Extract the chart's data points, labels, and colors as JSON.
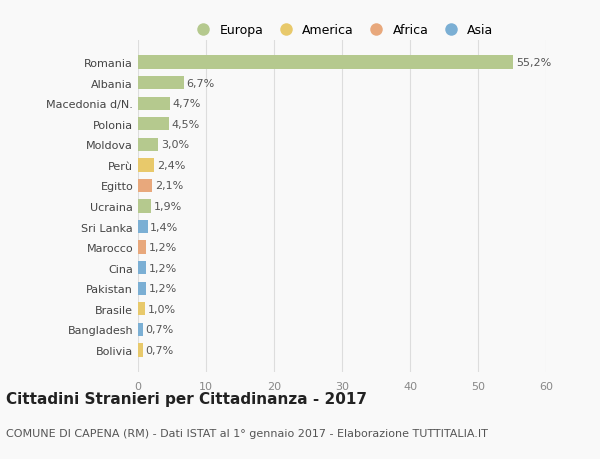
{
  "countries": [
    "Romania",
    "Albania",
    "Macedonia d/N.",
    "Polonia",
    "Moldova",
    "Perù",
    "Egitto",
    "Ucraina",
    "Sri Lanka",
    "Marocco",
    "Cina",
    "Pakistan",
    "Brasile",
    "Bangladesh",
    "Bolivia"
  ],
  "values": [
    55.2,
    6.7,
    4.7,
    4.5,
    3.0,
    2.4,
    2.1,
    1.9,
    1.4,
    1.2,
    1.2,
    1.2,
    1.0,
    0.7,
    0.7
  ],
  "labels": [
    "55,2%",
    "6,7%",
    "4,7%",
    "4,5%",
    "3,0%",
    "2,4%",
    "2,1%",
    "1,9%",
    "1,4%",
    "1,2%",
    "1,2%",
    "1,2%",
    "1,0%",
    "0,7%",
    "0,7%"
  ],
  "continents": [
    "Europa",
    "Europa",
    "Europa",
    "Europa",
    "Europa",
    "America",
    "Africa",
    "Europa",
    "Asia",
    "Africa",
    "Asia",
    "Asia",
    "America",
    "Asia",
    "America"
  ],
  "continent_colors": {
    "Europa": "#b5c98e",
    "America": "#e8c96b",
    "Africa": "#e8a87c",
    "Asia": "#7bafd4"
  },
  "legend_order": [
    "Europa",
    "America",
    "Africa",
    "Asia"
  ],
  "legend_colors": [
    "#b5c98e",
    "#e8c96b",
    "#e8a87c",
    "#7bafd4"
  ],
  "title": "Cittadini Stranieri per Cittadinanza - 2017",
  "subtitle": "COMUNE DI CAPENA (RM) - Dati ISTAT al 1° gennaio 2017 - Elaborazione TUTTITALIA.IT",
  "xlim": [
    0,
    60
  ],
  "xticks": [
    0,
    10,
    20,
    30,
    40,
    50,
    60
  ],
  "background_color": "#f9f9f9",
  "grid_color": "#dddddd",
  "bar_height": 0.65,
  "title_fontsize": 11,
  "subtitle_fontsize": 8,
  "label_fontsize": 8,
  "ytick_fontsize": 8,
  "xtick_fontsize": 8
}
